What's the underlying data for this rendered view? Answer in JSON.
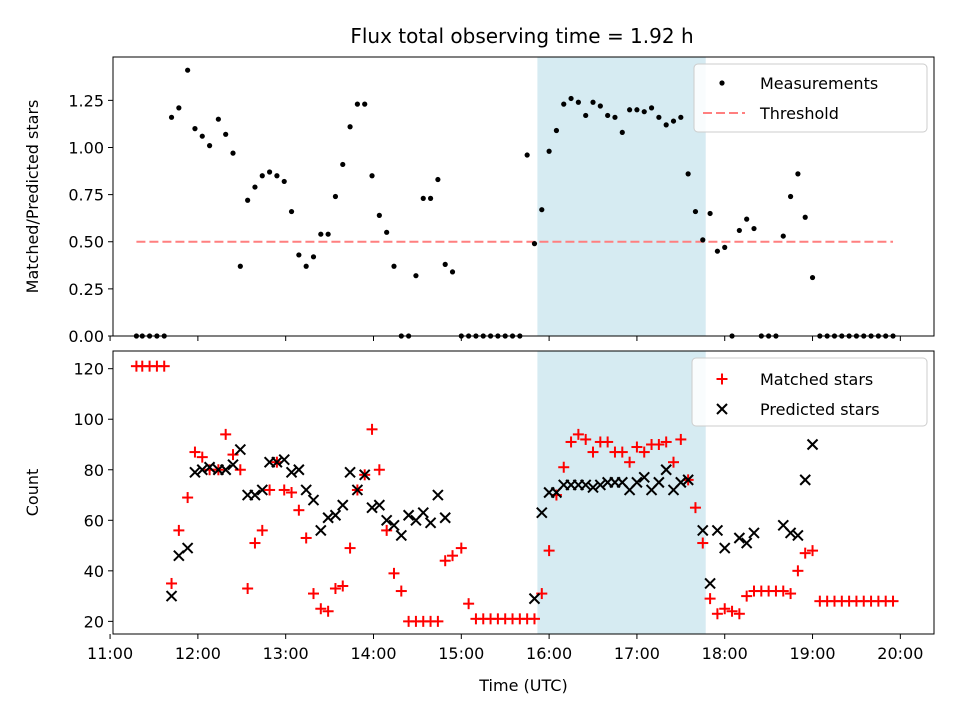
{
  "figure": {
    "title": "Flux total observing time = 1.92 h"
  },
  "colors": {
    "measurement": "#000000",
    "threshold": "#ff7f7f",
    "matched": "#ff0000",
    "predicted": "#000000",
    "highlight": "#add8e6"
  },
  "chart_data": [
    {
      "type": "scatter",
      "ylabel": "Matched/Predicted stars",
      "xlim": [
        "11:02",
        "20:23"
      ],
      "ylim": [
        0,
        1.48
      ],
      "yticks": [
        "0.00",
        "0.25",
        "0.50",
        "0.75",
        "1.00",
        "1.25"
      ],
      "highlight_span": [
        "15:52",
        "17:47"
      ],
      "legend": {
        "placement": "top-right",
        "measurements": "Measurements",
        "threshold": "Threshold"
      },
      "threshold": {
        "value": 0.5,
        "x": [
          "11:18",
          "19:55"
        ]
      },
      "measurements": [
        [
          "11:18",
          0
        ],
        [
          "11:22",
          0
        ],
        [
          "11:27",
          0
        ],
        [
          "11:32",
          0
        ],
        [
          "11:37",
          0
        ],
        [
          "11:42",
          1.16
        ],
        [
          "11:47",
          1.21
        ],
        [
          "11:53",
          1.41
        ],
        [
          "11:58",
          1.1
        ],
        [
          "12:03",
          1.06
        ],
        [
          "12:08",
          1.01
        ],
        [
          "12:14",
          1.15
        ],
        [
          "12:19",
          1.07
        ],
        [
          "12:24",
          0.97
        ],
        [
          "12:29",
          0.37
        ],
        [
          "12:34",
          0.72
        ],
        [
          "12:39",
          0.79
        ],
        [
          "12:44",
          0.85
        ],
        [
          "12:49",
          0.87
        ],
        [
          "12:54",
          0.85
        ],
        [
          "12:59",
          0.82
        ],
        [
          "13:04",
          0.66
        ],
        [
          "13:09",
          0.43
        ],
        [
          "13:14",
          0.37
        ],
        [
          "13:19",
          0.42
        ],
        [
          "13:24",
          0.54
        ],
        [
          "13:29",
          0.54
        ],
        [
          "13:34",
          0.74
        ],
        [
          "13:39",
          0.91
        ],
        [
          "13:44",
          1.11
        ],
        [
          "13:49",
          1.23
        ],
        [
          "13:54",
          1.23
        ],
        [
          "13:59",
          0.85
        ],
        [
          "14:04",
          0.64
        ],
        [
          "14:09",
          0.55
        ],
        [
          "14:14",
          0.37
        ],
        [
          "14:19",
          0
        ],
        [
          "14:24",
          0
        ],
        [
          "14:29",
          0.32
        ],
        [
          "14:34",
          0.73
        ],
        [
          "14:39",
          0.73
        ],
        [
          "14:44",
          0.83
        ],
        [
          "14:49",
          0.38
        ],
        [
          "14:54",
          0.34
        ],
        [
          "15:00",
          0
        ],
        [
          "15:05",
          0
        ],
        [
          "15:10",
          0
        ],
        [
          "15:15",
          0
        ],
        [
          "15:20",
          0
        ],
        [
          "15:25",
          0
        ],
        [
          "15:30",
          0
        ],
        [
          "15:35",
          0
        ],
        [
          "15:40",
          0
        ],
        [
          "15:45",
          0.96
        ],
        [
          "15:50",
          0.49
        ],
        [
          "15:55",
          0.67
        ],
        [
          "16:00",
          0.98
        ],
        [
          "16:05",
          1.09
        ],
        [
          "16:10",
          1.23
        ],
        [
          "16:15",
          1.26
        ],
        [
          "16:20",
          1.24
        ],
        [
          "16:25",
          1.17
        ],
        [
          "16:30",
          1.24
        ],
        [
          "16:35",
          1.22
        ],
        [
          "16:40",
          1.17
        ],
        [
          "16:45",
          1.16
        ],
        [
          "16:50",
          1.08
        ],
        [
          "16:55",
          1.2
        ],
        [
          "17:00",
          1.2
        ],
        [
          "17:05",
          1.19
        ],
        [
          "17:10",
          1.21
        ],
        [
          "17:15",
          1.16
        ],
        [
          "17:20",
          1.12
        ],
        [
          "17:25",
          1.14
        ],
        [
          "17:30",
          1.16
        ],
        [
          "17:35",
          0.86
        ],
        [
          "17:40",
          0.66
        ],
        [
          "17:45",
          0.51
        ],
        [
          "17:50",
          0.65
        ],
        [
          "17:55",
          0.45
        ],
        [
          "18:00",
          0.47
        ],
        [
          "18:05",
          0
        ],
        [
          "18:10",
          0.56
        ],
        [
          "18:15",
          0.62
        ],
        [
          "18:20",
          0.57
        ],
        [
          "18:25",
          0
        ],
        [
          "18:30",
          0
        ],
        [
          "18:35",
          0
        ],
        [
          "18:40",
          0.53
        ],
        [
          "18:45",
          0.74
        ],
        [
          "18:50",
          0.86
        ],
        [
          "18:55",
          0.63
        ],
        [
          "19:00",
          0.31
        ],
        [
          "19:05",
          0
        ],
        [
          "19:10",
          0
        ],
        [
          "19:15",
          0
        ],
        [
          "19:20",
          0
        ],
        [
          "19:25",
          0
        ],
        [
          "19:30",
          0
        ],
        [
          "19:35",
          0
        ],
        [
          "19:40",
          0
        ],
        [
          "19:45",
          0
        ],
        [
          "19:50",
          0
        ],
        [
          "19:55",
          0
        ]
      ]
    },
    {
      "type": "scatter",
      "xlabel": "Time (UTC)",
      "ylabel": "Count",
      "xlim": [
        "11:02",
        "20:23"
      ],
      "ylim": [
        15,
        127
      ],
      "xticks": [
        "11:00",
        "12:00",
        "13:00",
        "14:00",
        "15:00",
        "16:00",
        "17:00",
        "18:00",
        "19:00",
        "20:00"
      ],
      "yticks": [
        "20",
        "40",
        "60",
        "80",
        "100",
        "120"
      ],
      "highlight_span": [
        "15:52",
        "17:47"
      ],
      "legend": {
        "placement": "top-right",
        "matched": "Matched stars",
        "predicted": "Predicted stars"
      },
      "matched": [
        [
          "11:18",
          121
        ],
        [
          "11:22",
          121
        ],
        [
          "11:27",
          121
        ],
        [
          "11:32",
          121
        ],
        [
          "11:37",
          121
        ],
        [
          "11:42",
          35
        ],
        [
          "11:47",
          56
        ],
        [
          "11:53",
          69
        ],
        [
          "11:58",
          87
        ],
        [
          "12:03",
          85
        ],
        [
          "12:08",
          80
        ],
        [
          "12:14",
          80
        ],
        [
          "12:19",
          94
        ],
        [
          "12:24",
          86
        ],
        [
          "12:29",
          80
        ],
        [
          "12:34",
          33
        ],
        [
          "12:39",
          51
        ],
        [
          "12:44",
          56
        ],
        [
          "12:49",
          72
        ],
        [
          "12:54",
          83
        ],
        [
          "12:59",
          72
        ],
        [
          "13:04",
          71
        ],
        [
          "13:09",
          64
        ],
        [
          "13:14",
          53
        ],
        [
          "13:19",
          31
        ],
        [
          "13:24",
          25
        ],
        [
          "13:29",
          24
        ],
        [
          "13:34",
          33
        ],
        [
          "13:39",
          34
        ],
        [
          "13:44",
          49
        ],
        [
          "13:49",
          72
        ],
        [
          "13:54",
          78
        ],
        [
          "13:59",
          96
        ],
        [
          "14:04",
          80
        ],
        [
          "14:09",
          56
        ],
        [
          "14:14",
          39
        ],
        [
          "14:19",
          32
        ],
        [
          "14:24",
          20
        ],
        [
          "14:29",
          20
        ],
        [
          "14:34",
          20
        ],
        [
          "14:39",
          20
        ],
        [
          "14:44",
          20
        ],
        [
          "14:49",
          44
        ],
        [
          "14:54",
          46
        ],
        [
          "15:00",
          49
        ],
        [
          "15:05",
          27
        ],
        [
          "15:10",
          21
        ],
        [
          "15:15",
          21
        ],
        [
          "15:20",
          21
        ],
        [
          "15:25",
          21
        ],
        [
          "15:30",
          21
        ],
        [
          "15:35",
          21
        ],
        [
          "15:40",
          21
        ],
        [
          "15:45",
          21
        ],
        [
          "15:50",
          21
        ],
        [
          "15:55",
          31
        ],
        [
          "16:00",
          48
        ],
        [
          "16:05",
          70
        ],
        [
          "16:10",
          81
        ],
        [
          "16:15",
          91
        ],
        [
          "16:20",
          94
        ],
        [
          "16:25",
          92
        ],
        [
          "16:30",
          87
        ],
        [
          "16:35",
          91
        ],
        [
          "16:40",
          91
        ],
        [
          "16:45",
          87
        ],
        [
          "16:50",
          87
        ],
        [
          "16:55",
          83
        ],
        [
          "17:00",
          89
        ],
        [
          "17:05",
          87
        ],
        [
          "17:10",
          90
        ],
        [
          "17:15",
          90
        ],
        [
          "17:20",
          91
        ],
        [
          "17:25",
          83
        ],
        [
          "17:30",
          92
        ],
        [
          "17:35",
          76
        ],
        [
          "17:40",
          65
        ],
        [
          "17:45",
          51
        ],
        [
          "17:50",
          29
        ],
        [
          "17:55",
          23
        ],
        [
          "18:00",
          25
        ],
        [
          "18:05",
          24
        ],
        [
          "18:10",
          23
        ],
        [
          "18:15",
          30
        ],
        [
          "18:20",
          32
        ],
        [
          "18:25",
          32
        ],
        [
          "18:30",
          32
        ],
        [
          "18:35",
          32
        ],
        [
          "18:40",
          32
        ],
        [
          "18:45",
          31
        ],
        [
          "18:50",
          40
        ],
        [
          "18:55",
          47
        ],
        [
          "19:00",
          48
        ],
        [
          "19:05",
          28
        ],
        [
          "19:10",
          28
        ],
        [
          "19:15",
          28
        ],
        [
          "19:20",
          28
        ],
        [
          "19:25",
          28
        ],
        [
          "19:30",
          28
        ],
        [
          "19:35",
          28
        ],
        [
          "19:40",
          28
        ],
        [
          "19:45",
          28
        ],
        [
          "19:50",
          28
        ],
        [
          "19:55",
          28
        ]
      ],
      "predicted": [
        [
          "11:42",
          30
        ],
        [
          "11:47",
          46
        ],
        [
          "11:53",
          49
        ],
        [
          "11:58",
          79
        ],
        [
          "12:03",
          80
        ],
        [
          "12:08",
          81
        ],
        [
          "12:14",
          80
        ],
        [
          "12:19",
          80
        ],
        [
          "12:24",
          82
        ],
        [
          "12:29",
          88
        ],
        [
          "12:34",
          70
        ],
        [
          "12:39",
          70
        ],
        [
          "12:44",
          72
        ],
        [
          "12:49",
          83
        ],
        [
          "12:54",
          83
        ],
        [
          "12:59",
          84
        ],
        [
          "13:04",
          79
        ],
        [
          "13:09",
          80
        ],
        [
          "13:14",
          72
        ],
        [
          "13:19",
          68
        ],
        [
          "13:24",
          56
        ],
        [
          "13:29",
          61
        ],
        [
          "13:34",
          62
        ],
        [
          "13:39",
          66
        ],
        [
          "13:44",
          79
        ],
        [
          "13:49",
          72
        ],
        [
          "13:54",
          78
        ],
        [
          "13:59",
          65
        ],
        [
          "14:04",
          66
        ],
        [
          "14:09",
          60
        ],
        [
          "14:14",
          58
        ],
        [
          "14:19",
          54
        ],
        [
          "14:24",
          62
        ],
        [
          "14:29",
          60
        ],
        [
          "14:34",
          63
        ],
        [
          "14:39",
          59
        ],
        [
          "14:44",
          70
        ],
        [
          "14:49",
          61
        ],
        [
          "15:50",
          29
        ],
        [
          "15:55",
          63
        ],
        [
          "16:00",
          71
        ],
        [
          "16:05",
          71
        ],
        [
          "16:10",
          74
        ],
        [
          "16:15",
          74
        ],
        [
          "16:20",
          74
        ],
        [
          "16:25",
          74
        ],
        [
          "16:30",
          73
        ],
        [
          "16:35",
          74
        ],
        [
          "16:40",
          75
        ],
        [
          "16:45",
          75
        ],
        [
          "16:50",
          75
        ],
        [
          "16:55",
          72
        ],
        [
          "17:00",
          75
        ],
        [
          "17:05",
          77
        ],
        [
          "17:10",
          72
        ],
        [
          "17:15",
          75
        ],
        [
          "17:20",
          80
        ],
        [
          "17:25",
          72
        ],
        [
          "17:30",
          75
        ],
        [
          "17:35",
          76
        ],
        [
          "17:45",
          56
        ],
        [
          "17:50",
          35
        ],
        [
          "17:55",
          56
        ],
        [
          "18:00",
          49
        ],
        [
          "18:10",
          53
        ],
        [
          "18:15",
          51
        ],
        [
          "18:20",
          55
        ],
        [
          "18:40",
          58
        ],
        [
          "18:45",
          55
        ],
        [
          "18:50",
          54
        ],
        [
          "18:55",
          76
        ],
        [
          "19:00",
          90
        ]
      ]
    }
  ]
}
